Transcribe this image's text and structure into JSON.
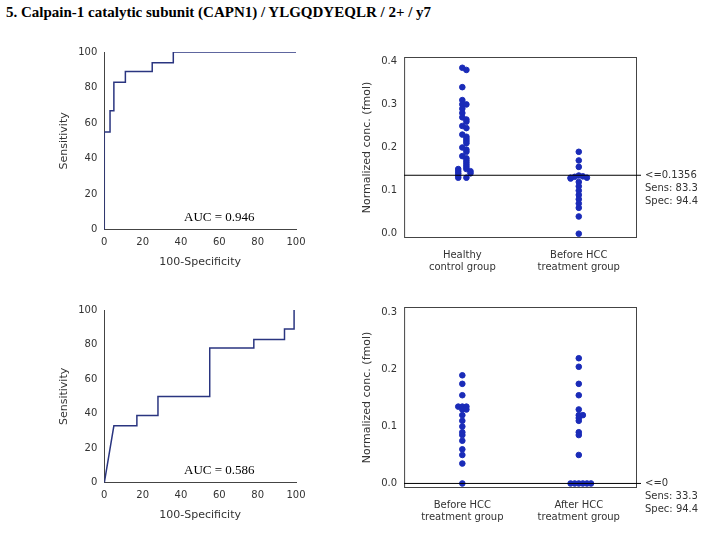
{
  "title": "5. Calpain-1 catalytic subunit (CAPN1) / YLGQDYEQLR / 2+ / y7",
  "chart_data": [
    {
      "type": "line",
      "x_label": "100-Specificity",
      "y_label": "Sensitivity",
      "annotation": "AUC = 0.946",
      "x": [
        0,
        0,
        3,
        3,
        5,
        5,
        11,
        11,
        25,
        25,
        36,
        36,
        100
      ],
      "values": [
        0,
        55,
        55,
        67,
        67,
        83,
        83,
        89,
        89,
        94,
        94,
        100,
        100
      ],
      "color": "#2a3580",
      "xlim": [
        0,
        100
      ],
      "xticks": [
        0,
        20,
        40,
        60,
        80,
        100
      ],
      "ylim": [
        0,
        100
      ],
      "yticks": [
        0,
        20,
        40,
        60,
        80,
        100
      ],
      "grid": false
    },
    {
      "type": "dot",
      "y_label": "Normalized conc. (fmol)",
      "categories": [
        "Healthy control group",
        "Before HCC treatment group"
      ],
      "values": [
        [
          0.385,
          0.38,
          0.34,
          0.31,
          0.3,
          0.3,
          0.29,
          0.28,
          0.27,
          0.265,
          0.26,
          0.25,
          0.245,
          0.23,
          0.225,
          0.22,
          0.215,
          0.21,
          0.2,
          0.195,
          0.19,
          0.18,
          0.175,
          0.17,
          0.165,
          0.16,
          0.155,
          0.15,
          0.15,
          0.145,
          0.145,
          0.14,
          0.14,
          0.135,
          0.13,
          0.13
        ],
        [
          0.19,
          0.17,
          0.155,
          0.135,
          0.133,
          0.132,
          0.13,
          0.13,
          0.128,
          0.12,
          0.11,
          0.1,
          0.09,
          0.08,
          0.07,
          0.06,
          0.04,
          0
        ]
      ],
      "threshold": {
        "value": 0.1356,
        "label": "<=0.1356"
      },
      "annotations": [
        "Sens: 83.3",
        "Spec: 94.4"
      ],
      "color": "#1a2bb8",
      "ylim": [
        -0.01,
        0.41
      ],
      "yticks": [
        {
          "value": 0,
          "label": "0.0"
        },
        0.1,
        0.2,
        0.3,
        0.4
      ],
      "grid": false
    },
    {
      "type": "line",
      "x_label": "100-Specificity",
      "y_label": "Sensitivity",
      "annotation": "AUC = 0.586",
      "x": [
        0,
        5,
        17,
        17,
        28,
        28,
        55,
        55,
        78,
        78,
        94,
        94,
        99,
        99
      ],
      "values": [
        0,
        33,
        33,
        39,
        39,
        50,
        50,
        78,
        78,
        83,
        83,
        89,
        89,
        100
      ],
      "color": "#2a3580",
      "xlim": [
        0,
        100
      ],
      "xticks": [
        0,
        20,
        40,
        60,
        80,
        100
      ],
      "ylim": [
        0,
        100
      ],
      "yticks": [
        0,
        20,
        40,
        60,
        80,
        100
      ],
      "grid": false
    },
    {
      "type": "dot",
      "y_label": "Normalized conc. (fmol)",
      "categories": [
        "Before HCC treatment group",
        "After HCC treatment group"
      ],
      "values": [
        [
          0.19,
          0.175,
          0.155,
          0.135,
          0.135,
          0.135,
          0.13,
          0.13,
          0.12,
          0.11,
          0.1,
          0.09,
          0.085,
          0.075,
          0.06,
          0.05,
          0.035,
          0
        ],
        [
          0.22,
          0.205,
          0.175,
          0.155,
          0.13,
          0.12,
          0.12,
          0.115,
          0.11,
          0.09,
          0.085,
          0.05,
          0,
          0,
          0,
          0,
          0,
          0
        ]
      ],
      "threshold": {
        "value": 0,
        "label": "<=0"
      },
      "annotations": [
        "Sens: 33.3",
        "Spec: 94.4"
      ],
      "color": "#1a2bb8",
      "ylim": [
        -0.008,
        0.31
      ],
      "yticks": [
        {
          "value": 0,
          "label": "0.0"
        },
        0.1,
        0.2,
        0.3
      ],
      "grid": false
    }
  ]
}
